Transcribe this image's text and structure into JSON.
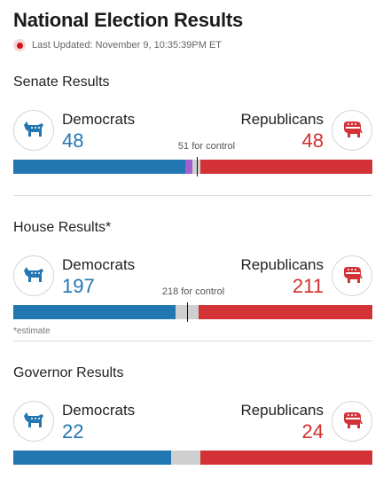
{
  "title": "National Election Results",
  "updated": "Last Updated: November 9, 10:35:39PM ET",
  "colors": {
    "democrat": "#2276b1",
    "republican": "#d33236",
    "independent": "#a25fd1",
    "undecided": "#cfcfcf"
  },
  "senate": {
    "title": "Senate Results",
    "dem_label": "Democrats",
    "dem_count": "48",
    "rep_label": "Republicans",
    "rep_count": "48",
    "control_label": "51 for control",
    "bar": {
      "total": 100,
      "dem": 48,
      "ind": 2,
      "undecided": 2,
      "rep": 48,
      "control": 51
    }
  },
  "house": {
    "title": "House Results*",
    "dem_label": "Democrats",
    "dem_count": "197",
    "rep_label": "Republicans",
    "rep_count": "211",
    "control_label": "218 for control",
    "footnote": "*estimate",
    "bar": {
      "total": 435,
      "dem": 197,
      "ind": 0,
      "undecided": 27,
      "rep": 211,
      "control": 218
    }
  },
  "governor": {
    "title": "Governor Results",
    "dem_label": "Democrats",
    "dem_count": "22",
    "rep_label": "Republicans",
    "rep_count": "24",
    "bar": {
      "total": 50,
      "dem": 22,
      "ind": 0,
      "undecided": 4,
      "rep": 24
    }
  }
}
